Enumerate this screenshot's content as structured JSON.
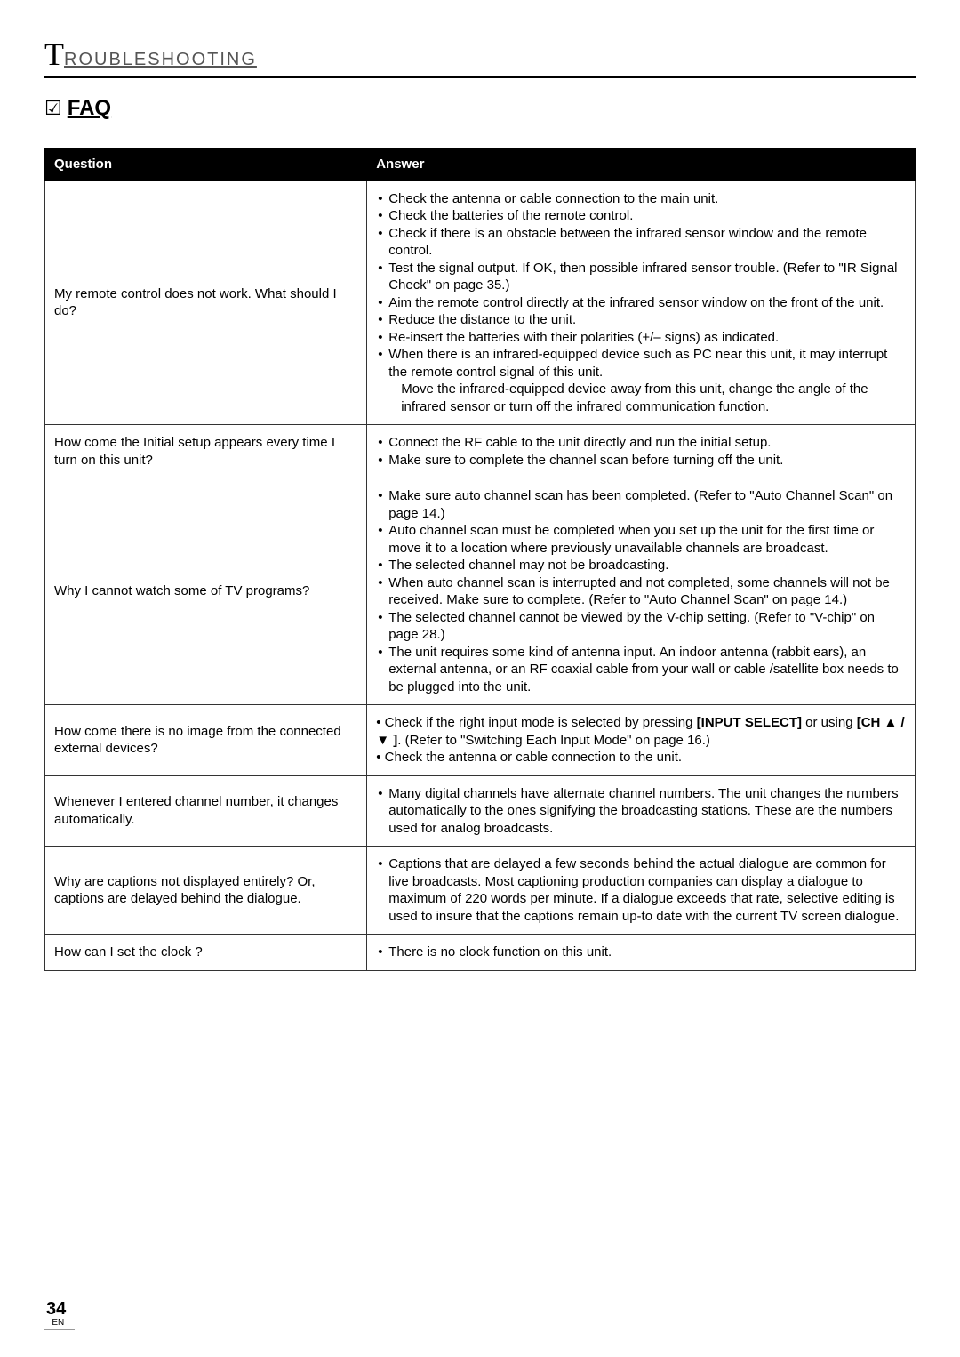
{
  "header": {
    "initial": "T",
    "rest": "ROUBLESHOOTING"
  },
  "faq": {
    "checkbox_glyph": "☑",
    "label": "FAQ"
  },
  "table": {
    "col_question": "Question",
    "col_answer": "Answer",
    "rows": [
      {
        "question": "My remote control does not work.  What should I do?",
        "answers": [
          "Check the antenna or cable connection to the main unit.",
          "Check the batteries of the remote control.",
          "Check if there is an obstacle between the infrared sensor window and the remote control.",
          "Test the signal output. If OK, then possible infrared sensor trouble. (Refer to \"IR Signal Check\" on page 35.)",
          "Aim the remote control directly at the infrared sensor window on the front of the unit.",
          "Reduce the distance to the unit.",
          "Re-insert the batteries with their polarities (+/– signs) as indicated.",
          "When there is an infrared-equipped device such as PC near this unit, it may interrupt the remote control signal of this unit.\nMove the infrared-equipped device away from this unit, change the angle of the infrared sensor or turn off the infrared communication function."
        ]
      },
      {
        "question": "How come the Initial setup appears every time I turn on this unit?",
        "answers": [
          "Connect the RF cable to the unit directly and run the initial setup.",
          "Make sure to complete the channel scan before turning off the unit."
        ]
      },
      {
        "question": "Why I cannot watch some of TV programs?",
        "answers": [
          "Make sure auto channel scan has been completed. (Refer to \"Auto Channel Scan\" on page 14.)",
          "Auto channel scan must be completed when you set up the unit for the first time or move it to a location where previously unavailable channels are broadcast.",
          "The selected channel may not be broadcasting.",
          "When auto channel scan is interrupted and not completed, some channels will not be received. Make sure to complete. (Refer to \"Auto Channel Scan\" on page 14.)",
          "The selected channel cannot be viewed by the V-chip setting. (Refer to \"V-chip\" on page 28.)",
          "The unit requires some kind of antenna input. An indoor antenna (rabbit ears), an external antenna, or an RF coaxial cable from your wall or cable /satellite box needs to be plugged into the unit."
        ]
      },
      {
        "question": "How come there is no image from the connected external devices?",
        "answers_html": "• Check if the right input mode is selected by pressing <b>[INPUT SELECT]</b> or using <b>[CH ▲ / ▼ ]</b>. (Refer to \"Switching Each Input Mode\" on page 16.)<br>• Check the antenna or cable connection to the unit."
      },
      {
        "question": "Whenever I entered channel number, it changes automatically.",
        "answers": [
          "Many digital channels have alternate channel numbers. The unit changes the numbers automatically to the ones signifying the broadcasting stations. These are the numbers used for analog broadcasts."
        ]
      },
      {
        "question": "Why are captions not displayed entirely? Or, captions are delayed behind the dialogue.",
        "answers": [
          "Captions that are delayed a few seconds behind the actual dialogue are common for live broadcasts. Most captioning production companies can display a dialogue to maximum of 220 words per minute. If a dialogue exceeds that rate, selective editing is used to insure that the captions remain up-to date with the current TV screen dialogue."
        ]
      },
      {
        "question": "How can I set the clock ?",
        "answers": [
          "There is no clock function on this unit."
        ]
      }
    ]
  },
  "footer": {
    "page": "34",
    "lang": "EN"
  }
}
